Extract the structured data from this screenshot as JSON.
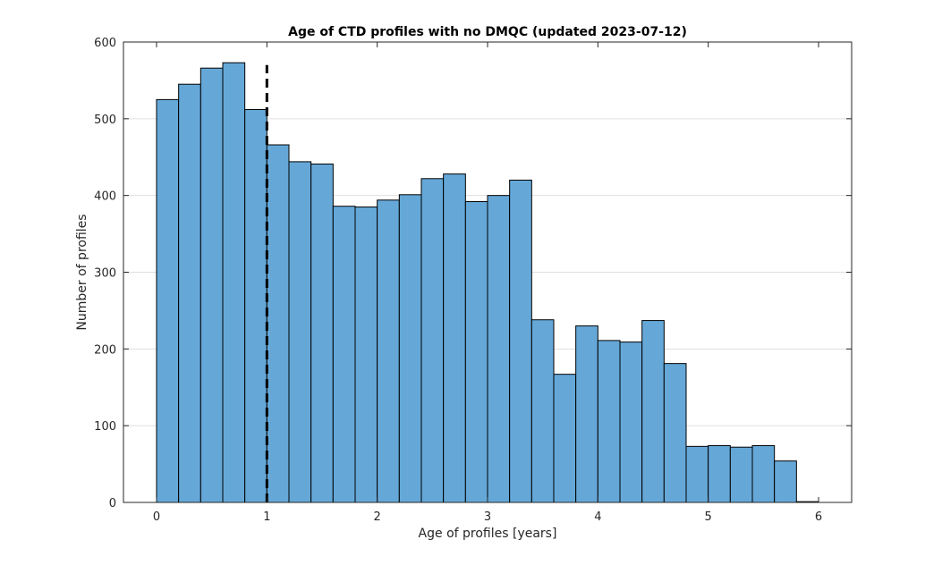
{
  "chart_data": {
    "type": "bar",
    "title": "Age of CTD profiles with no DMQC (updated 2023-07-12)",
    "xlabel": "Age of profiles [years]",
    "ylabel": "Number of profiles",
    "xlim": [
      -0.3,
      6.3
    ],
    "ylim": [
      0,
      600
    ],
    "xticks": [
      0,
      1,
      2,
      3,
      4,
      5,
      6
    ],
    "yticks": [
      0,
      100,
      200,
      300,
      400,
      500,
      600
    ],
    "grid": "y",
    "bin_width": 0.2,
    "bins": [
      {
        "x0": 0.0,
        "x1": 0.2,
        "value": 525
      },
      {
        "x0": 0.2,
        "x1": 0.4,
        "value": 545
      },
      {
        "x0": 0.4,
        "x1": 0.6,
        "value": 566
      },
      {
        "x0": 0.6,
        "x1": 0.8,
        "value": 573
      },
      {
        "x0": 0.8,
        "x1": 1.0,
        "value": 512
      },
      {
        "x0": 1.0,
        "x1": 1.2,
        "value": 466
      },
      {
        "x0": 1.2,
        "x1": 1.4,
        "value": 444
      },
      {
        "x0": 1.4,
        "x1": 1.6,
        "value": 441
      },
      {
        "x0": 1.6,
        "x1": 1.8,
        "value": 386
      },
      {
        "x0": 1.8,
        "x1": 2.0,
        "value": 385
      },
      {
        "x0": 2.0,
        "x1": 2.2,
        "value": 394
      },
      {
        "x0": 2.2,
        "x1": 2.4,
        "value": 401
      },
      {
        "x0": 2.4,
        "x1": 2.6,
        "value": 422
      },
      {
        "x0": 2.6,
        "x1": 2.8,
        "value": 428
      },
      {
        "x0": 2.8,
        "x1": 3.0,
        "value": 392
      },
      {
        "x0": 3.0,
        "x1": 3.2,
        "value": 400
      },
      {
        "x0": 3.2,
        "x1": 3.4,
        "value": 420
      },
      {
        "x0": 3.4,
        "x1": 3.6,
        "value": 238
      },
      {
        "x0": 3.6,
        "x1": 3.8,
        "value": 167
      },
      {
        "x0": 3.8,
        "x1": 4.0,
        "value": 230
      },
      {
        "x0": 4.0,
        "x1": 4.2,
        "value": 211
      },
      {
        "x0": 4.2,
        "x1": 4.4,
        "value": 209
      },
      {
        "x0": 4.4,
        "x1": 4.6,
        "value": 237
      },
      {
        "x0": 4.6,
        "x1": 4.8,
        "value": 181
      },
      {
        "x0": 4.8,
        "x1": 5.0,
        "value": 73
      },
      {
        "x0": 5.0,
        "x1": 5.2,
        "value": 74
      },
      {
        "x0": 5.2,
        "x1": 5.4,
        "value": 72
      },
      {
        "x0": 5.4,
        "x1": 5.6,
        "value": 74
      },
      {
        "x0": 5.6,
        "x1": 5.8,
        "value": 54
      },
      {
        "x0": 5.8,
        "x1": 6.0,
        "value": 1
      }
    ],
    "reference_line": {
      "x": 1.0,
      "y_top": 570,
      "style": "dashed",
      "color": "#000000"
    },
    "colors": {
      "bar_fill": "#65A8D8",
      "bar_edge": "#000000",
      "grid": "#DFDFDF",
      "axis": "#262626"
    }
  }
}
